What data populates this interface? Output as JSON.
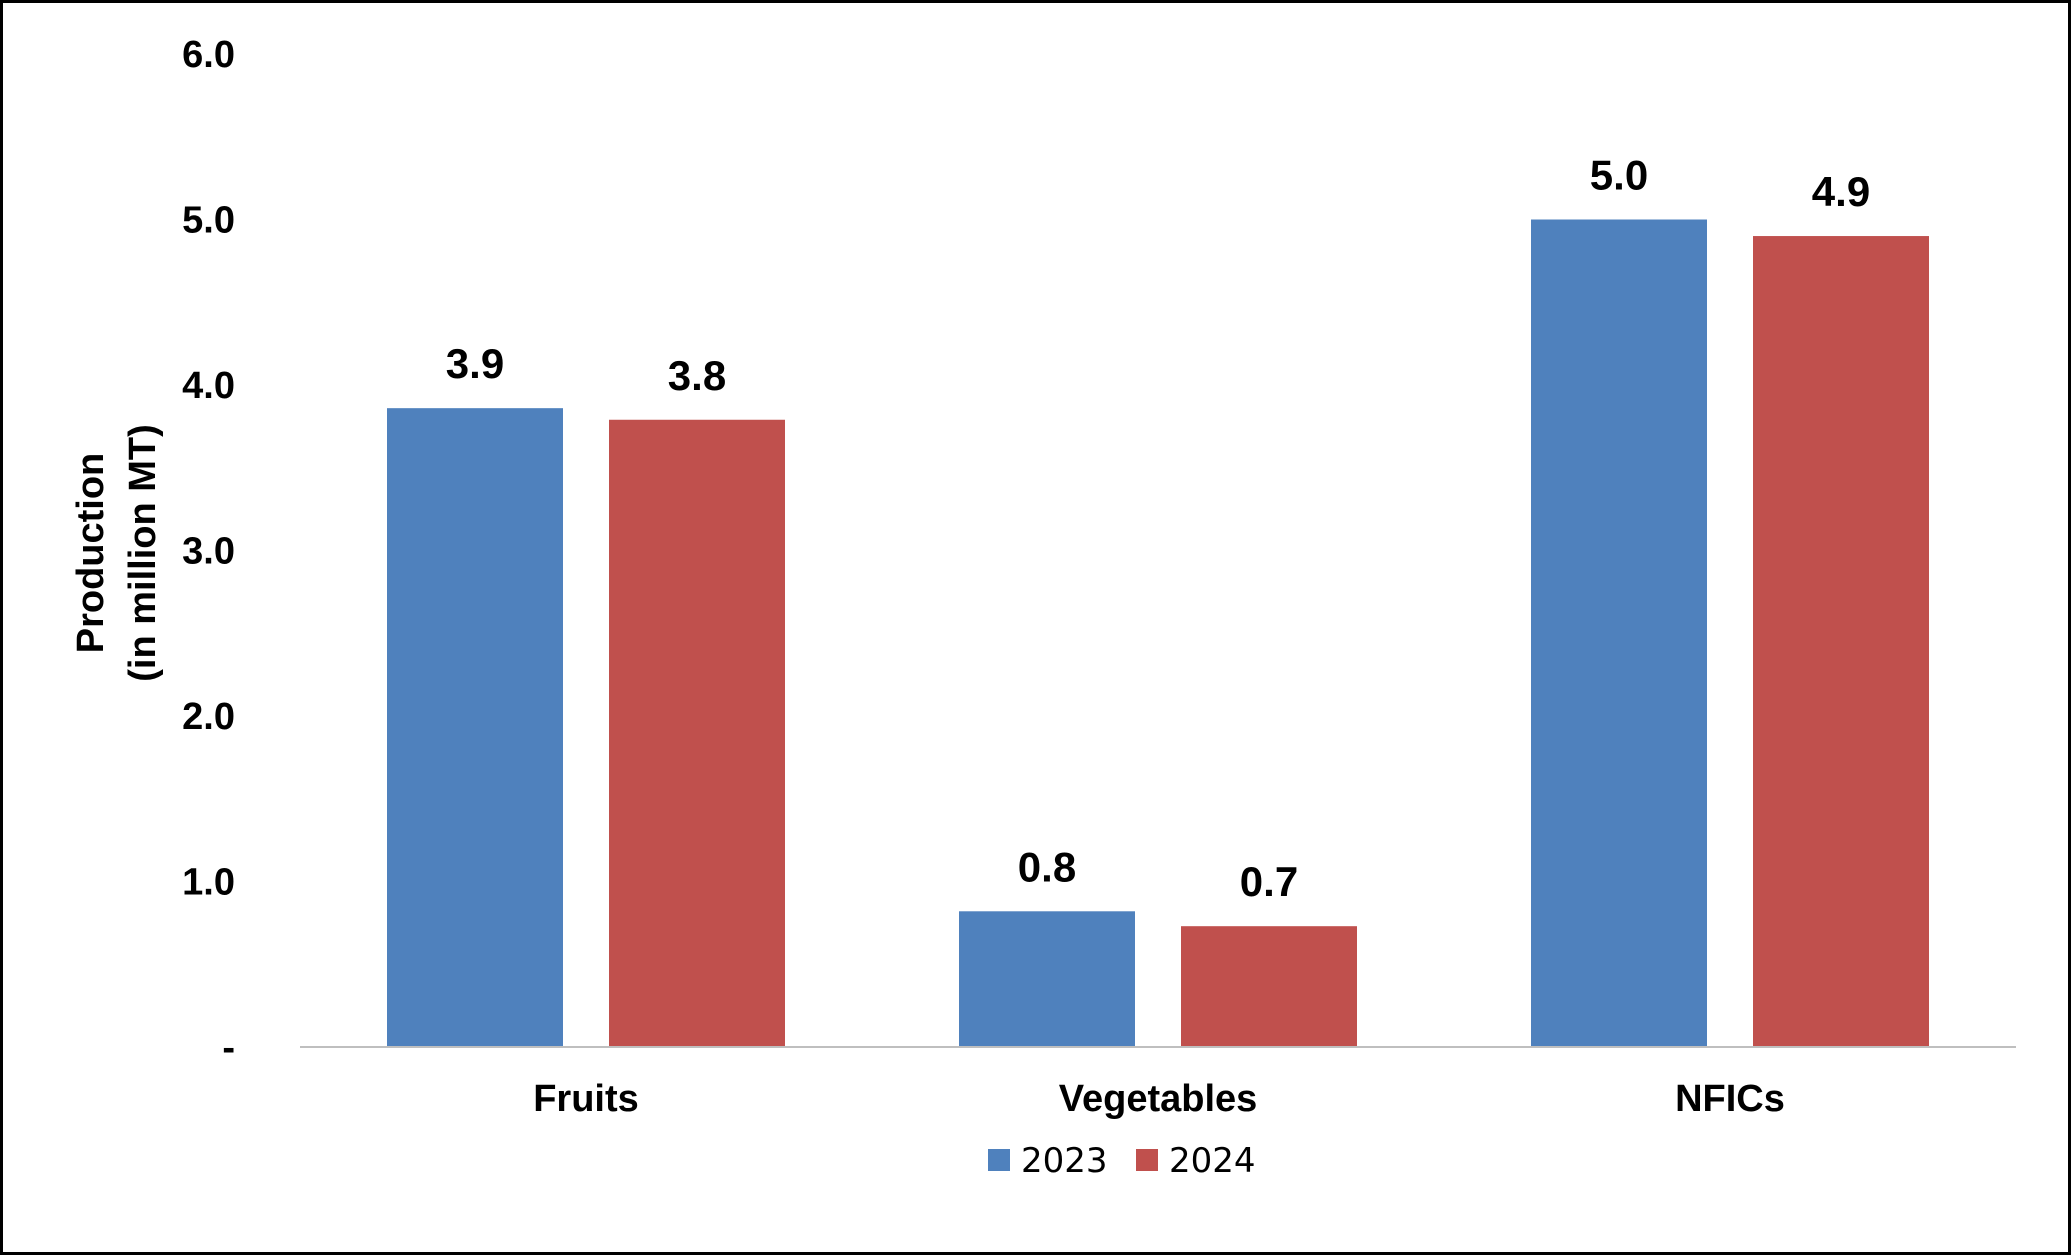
{
  "chart_data": {
    "type": "bar",
    "title": "",
    "xlabel": "",
    "ylabel_lines": [
      "Production",
      "(in million  MT)"
    ],
    "categories": [
      "Fruits",
      "Vegetables",
      "NFICs"
    ],
    "series": [
      {
        "name": "2023",
        "color": "#4F81BD",
        "values": [
          3.86,
          0.82,
          5.0
        ],
        "labels": [
          "3.9",
          "0.8",
          "5.0"
        ]
      },
      {
        "name": "2024",
        "color": "#C0504D",
        "values": [
          3.79,
          0.73,
          4.9
        ],
        "labels": [
          "3.8",
          "0.7",
          "4.9"
        ]
      }
    ],
    "ylim": [
      0,
      6
    ],
    "yticks": [
      {
        "value": 0,
        "label": "-"
      },
      {
        "value": 1,
        "label": "1.0"
      },
      {
        "value": 2,
        "label": "2.0"
      },
      {
        "value": 3,
        "label": "3.0"
      },
      {
        "value": 4,
        "label": "4.0"
      },
      {
        "value": 5,
        "label": "5.0"
      },
      {
        "value": 6,
        "label": "6.0"
      }
    ],
    "grid": false,
    "legend_position": "bottom-center"
  }
}
